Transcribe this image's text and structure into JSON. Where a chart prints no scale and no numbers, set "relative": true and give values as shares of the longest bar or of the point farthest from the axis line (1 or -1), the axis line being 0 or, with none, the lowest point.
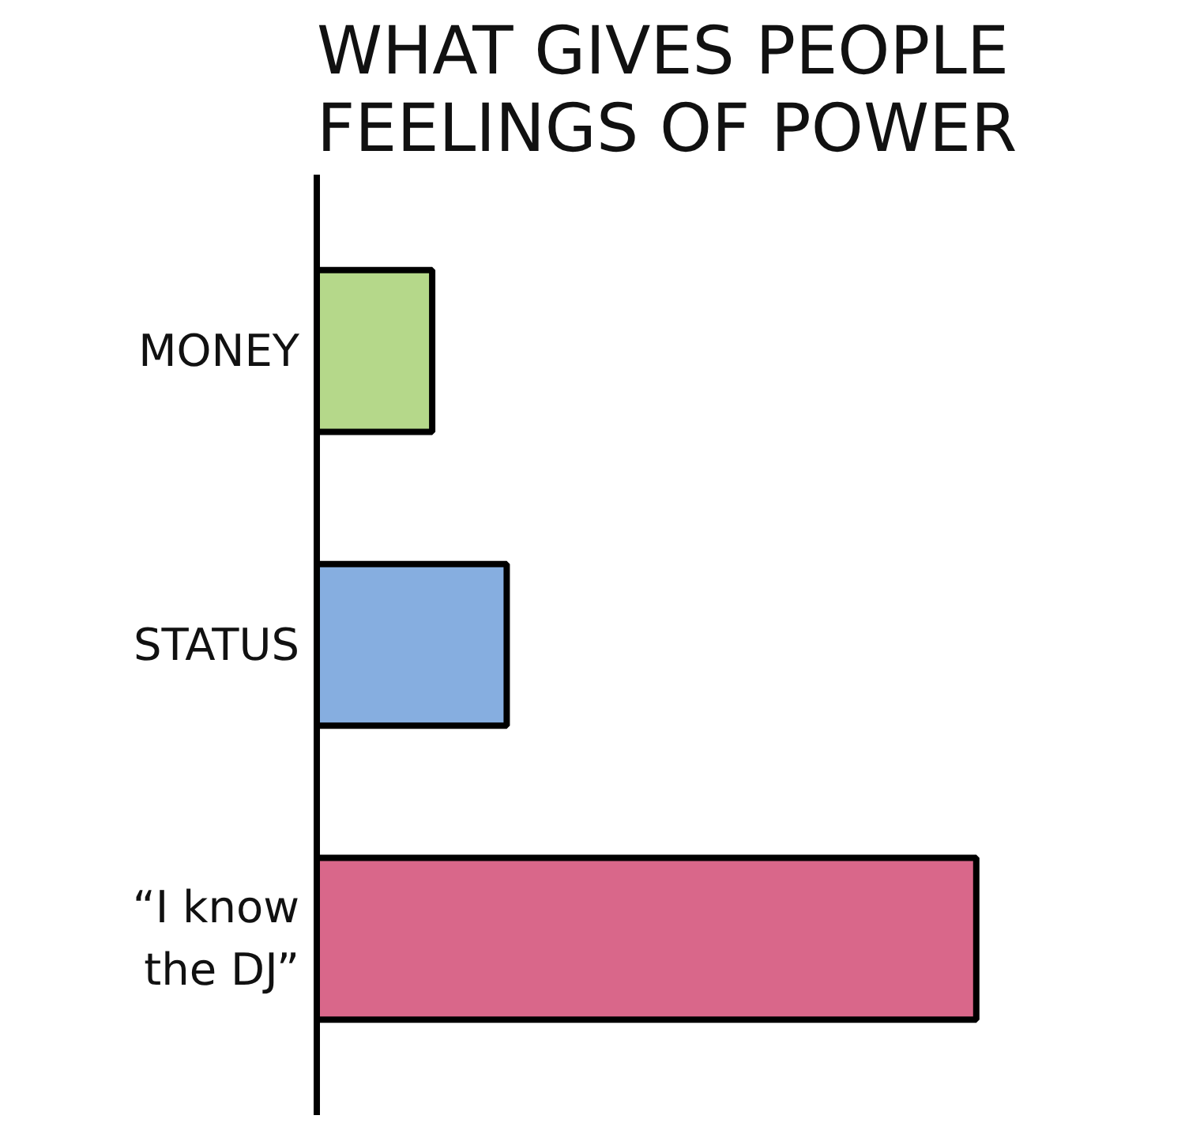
{
  "chart_data": {
    "type": "bar",
    "orientation": "horizontal",
    "relative": true,
    "title": "WHAT GIVES PEOPLE\nFEELINGS OF POWER",
    "categories": [
      "MONEY",
      "STATUS",
      "“I know\nthe DJ”"
    ],
    "values": [
      0.175,
      0.288,
      1
    ],
    "colors": [
      "#b5d88a",
      "#86aee0",
      "#d9678a"
    ]
  }
}
